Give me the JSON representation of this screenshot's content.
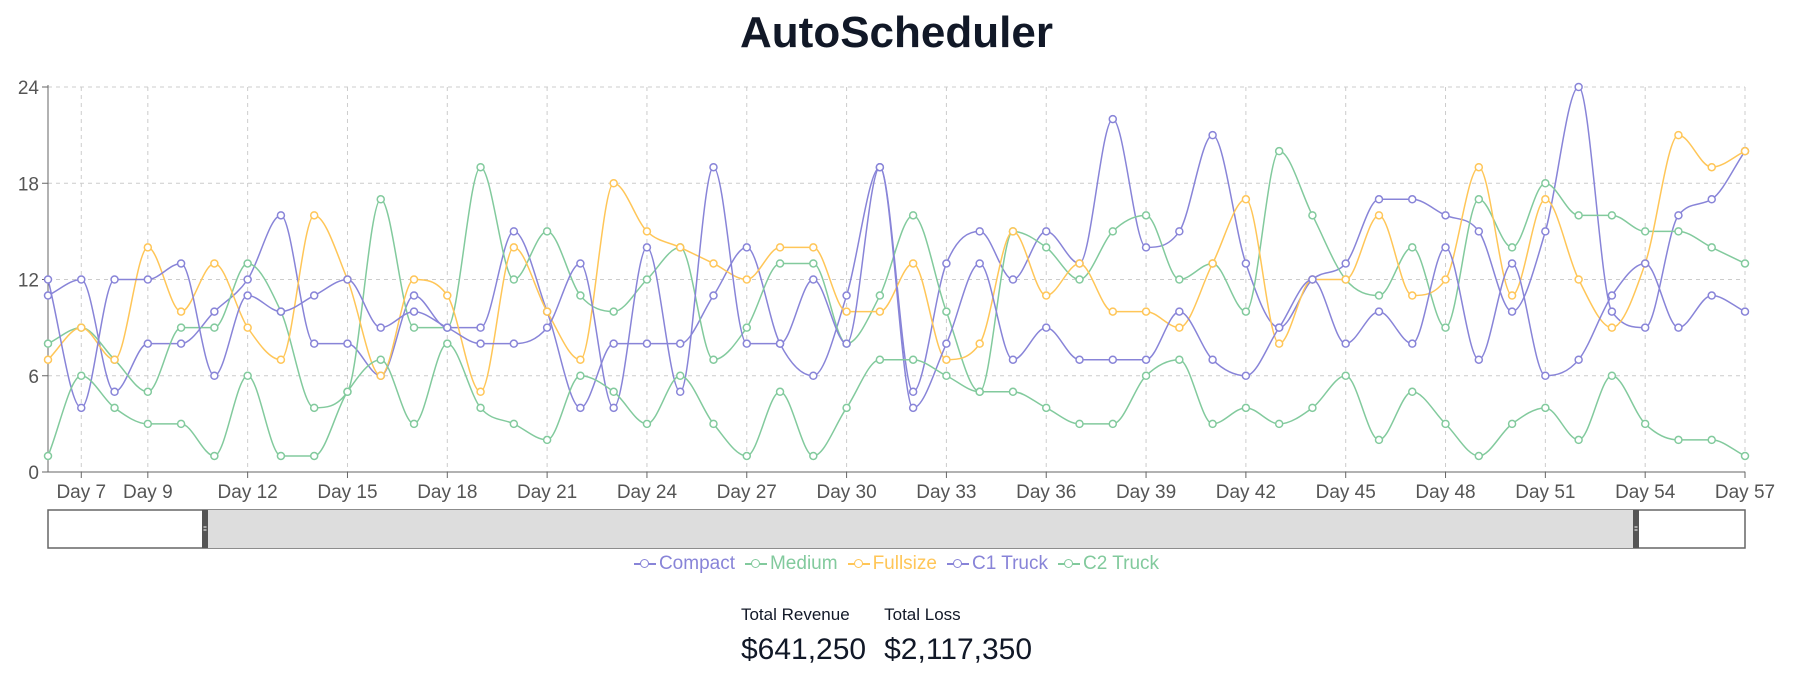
{
  "app": {
    "title": "AutoScheduler"
  },
  "colors": {
    "purple": "#8884d8",
    "green": "#82ca9d",
    "orange": "#ffc658"
  },
  "stats": [
    {
      "label": "Total Revenue",
      "value": "$641,250"
    },
    {
      "label": "Total Loss",
      "value": "$2,117,350"
    }
  ],
  "chart_data": {
    "type": "line",
    "title": "",
    "xlabel": "",
    "ylabel": "",
    "ylim": [
      0,
      24
    ],
    "yticks": [
      0,
      6,
      12,
      18,
      24
    ],
    "xlim": [
      6,
      57
    ],
    "xtick_days": [
      7,
      9,
      12,
      15,
      18,
      21,
      24,
      27,
      30,
      33,
      36,
      39,
      42,
      45,
      48,
      51,
      54,
      57
    ],
    "x": [
      6,
      7,
      8,
      9,
      10,
      11,
      12,
      13,
      14,
      15,
      16,
      17,
      18,
      19,
      20,
      21,
      22,
      23,
      24,
      25,
      26,
      27,
      28,
      29,
      30,
      31,
      32,
      33,
      34,
      35,
      36,
      37,
      38,
      39,
      40,
      41,
      42,
      43,
      44,
      45,
      46,
      47,
      48,
      49,
      50,
      51,
      52,
      53,
      54,
      55,
      56,
      57
    ],
    "grid": true,
    "legend_position": "bottom",
    "series": [
      {
        "name": "Compact",
        "color": "#8884d8",
        "values": [
          11,
          12,
          5,
          8,
          8,
          10,
          12,
          16,
          8,
          8,
          6,
          11,
          9,
          9,
          15,
          10,
          4,
          8,
          8,
          8,
          11,
          14,
          8,
          6,
          11,
          19,
          5,
          13,
          15,
          12,
          15,
          13,
          22,
          14,
          15,
          21,
          13,
          9,
          12,
          13,
          17,
          17,
          16,
          15,
          10,
          15,
          24,
          10,
          9,
          16,
          17,
          20
        ]
      },
      {
        "name": "Medium",
        "color": "#82ca9d",
        "values": [
          8,
          9,
          7,
          5,
          9,
          9,
          13,
          10,
          4,
          5,
          17,
          9,
          9,
          19,
          12,
          15,
          11,
          10,
          12,
          14,
          7,
          9,
          13,
          13,
          8,
          11,
          16,
          10,
          5,
          15,
          14,
          12,
          15,
          16,
          12,
          13,
          10,
          20,
          16,
          12,
          11,
          14,
          9,
          17,
          14,
          18,
          16,
          16,
          15,
          15,
          14,
          13
        ]
      },
      {
        "name": "Fullsize",
        "color": "#ffc658",
        "values": [
          7,
          9,
          7,
          14,
          10,
          13,
          9,
          7,
          16,
          12,
          6,
          12,
          11,
          5,
          14,
          10,
          7,
          18,
          15,
          14,
          13,
          12,
          14,
          14,
          10,
          10,
          13,
          7,
          8,
          15,
          11,
          13,
          10,
          10,
          9,
          13,
          17,
          8,
          12,
          12,
          16,
          11,
          12,
          19,
          11,
          17,
          12,
          9,
          13,
          21,
          19,
          20
        ]
      },
      {
        "name": "C1 Truck",
        "color": "#8884d8",
        "values": [
          12,
          4,
          12,
          12,
          13,
          6,
          11,
          10,
          11,
          12,
          9,
          10,
          9,
          8,
          8,
          9,
          13,
          4,
          14,
          5,
          19,
          8,
          8,
          12,
          8,
          19,
          4,
          8,
          13,
          7,
          9,
          7,
          7,
          7,
          10,
          7,
          6,
          9,
          12,
          8,
          10,
          8,
          14,
          7,
          13,
          6,
          7,
          11,
          13,
          9,
          11,
          10
        ]
      },
      {
        "name": "C2 Truck",
        "color": "#82ca9d",
        "values": [
          1,
          6,
          4,
          3,
          3,
          1,
          6,
          1,
          1,
          5,
          7,
          3,
          8,
          4,
          3,
          2,
          6,
          5,
          3,
          6,
          3,
          1,
          5,
          1,
          4,
          7,
          7,
          6,
          5,
          5,
          4,
          3,
          3,
          6,
          7,
          3,
          4,
          3,
          4,
          6,
          2,
          5,
          3,
          1,
          3,
          4,
          2,
          6,
          3,
          2,
          2,
          1
        ]
      }
    ]
  }
}
